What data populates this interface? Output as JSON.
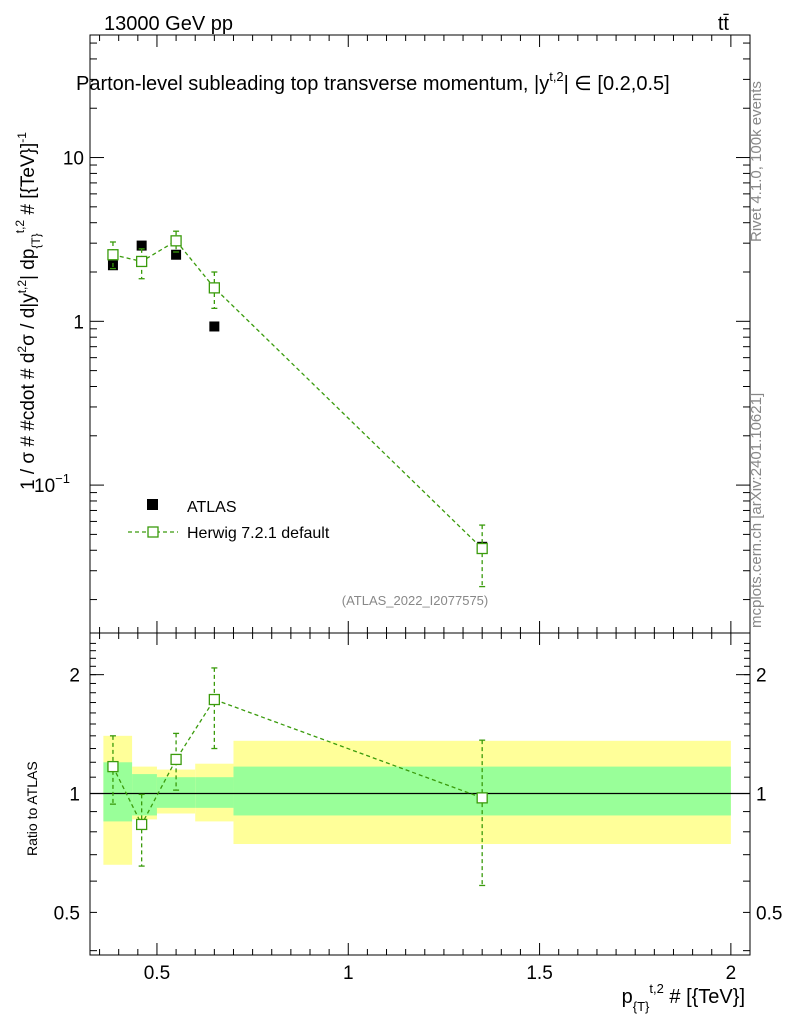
{
  "header": {
    "energy_label": "13000 GeV pp",
    "process_label": "tt̄",
    "title": "Parton-level subleading top transverse momentum, |y",
    "title_sup": "t,2",
    "title_tail": "| ∈ [0.2,0.5]"
  },
  "side_labels": {
    "rivet": "Rivet 4.1.0,  100k events",
    "mcplots": "mcplots.cern.ch [arXiv:2401.10621]"
  },
  "analysis_id": "(ATLAS_2022_I2077575)",
  "colors": {
    "mc": "#3a9b0c",
    "band_inner": "#99ff99",
    "band_outer": "#ffff99",
    "data": "#000000"
  },
  "chart_data": [
    {
      "type": "scatter",
      "name": "main",
      "yscale": "log",
      "ylabel_parts": [
        "1 / σ # #cdot # d",
        "2",
        "σ / d|y",
        "t,2",
        "| dp",
        "{T}",
        "t,2",
        " # [{TeV}]",
        "-1"
      ],
      "xlim": [
        0.325,
        2.05
      ],
      "ylim": [
        0.0125,
        56
      ],
      "y_ticks": [
        {
          "value": 10,
          "label": "10"
        },
        {
          "value": 1,
          "label": "1"
        },
        {
          "value": 0.1,
          "label": "10",
          "sup": "−1"
        }
      ],
      "legend": {
        "position": "lower-left",
        "entries": [
          {
            "label": "ATLAS",
            "marker": "filled-square"
          },
          {
            "label": "Herwig 7.2.1 default",
            "marker": "open-square-dashed"
          }
        ]
      },
      "series": [
        {
          "name": "ATLAS",
          "x": [
            0.385,
            0.46,
            0.55,
            0.65,
            1.35
          ],
          "y": [
            2.2,
            2.9,
            2.55,
            0.93,
            0.042
          ],
          "yerr_low": [
            0.12,
            0.0,
            0.0,
            0.0,
            0.0
          ],
          "yerr_high": [
            0.12,
            0.0,
            0.0,
            0.0,
            0.0
          ]
        },
        {
          "name": "Herwig 7.2.1 default",
          "x": [
            0.385,
            0.46,
            0.55,
            0.65,
            1.35
          ],
          "y": [
            2.55,
            2.32,
            3.1,
            1.6,
            0.041
          ],
          "yerr_low": [
            0.45,
            0.5,
            0.45,
            0.4,
            0.017
          ],
          "yerr_high": [
            0.5,
            0.45,
            0.45,
            0.4,
            0.016
          ]
        }
      ]
    },
    {
      "type": "scatter",
      "name": "ratio",
      "ylabel": "Ratio to ATLAS",
      "xlabel_parts": [
        "p",
        "{T}",
        "t,2",
        " # [{TeV}]"
      ],
      "xlim": [
        0.325,
        2.05
      ],
      "ylim": [
        0.39,
        2.55
      ],
      "y_ticks": [
        {
          "value": 2,
          "label": "2"
        },
        {
          "value": 1,
          "label": "1"
        },
        {
          "value": 0.5,
          "label": "0.5"
        }
      ],
      "x_ticks": [
        {
          "value": 0.5,
          "label": "0.5"
        },
        {
          "value": 1,
          "label": "1"
        },
        {
          "value": 1.5,
          "label": "1.5"
        },
        {
          "value": 2,
          "label": "2"
        }
      ],
      "bands": [
        {
          "x0": 0.36,
          "x1": 0.435,
          "inner": [
            0.85,
            1.2
          ],
          "outer": [
            0.66,
            1.4
          ]
        },
        {
          "x0": 0.435,
          "x1": 0.5,
          "inner": [
            0.88,
            1.12
          ],
          "outer": [
            0.86,
            1.17
          ]
        },
        {
          "x0": 0.5,
          "x1": 0.6,
          "inner": [
            0.92,
            1.1
          ],
          "outer": [
            0.89,
            1.15
          ]
        },
        {
          "x0": 0.6,
          "x1": 0.7,
          "inner": [
            0.92,
            1.1
          ],
          "outer": [
            0.85,
            1.19
          ]
        },
        {
          "x0": 0.7,
          "x1": 2.0,
          "inner": [
            0.88,
            1.17
          ],
          "outer": [
            0.745,
            1.36
          ]
        }
      ],
      "series": [
        {
          "name": "Herwig 7.2.1 default",
          "x": [
            0.385,
            0.46,
            0.55,
            0.65,
            1.35
          ],
          "y": [
            1.17,
            0.835,
            1.22,
            1.73,
            0.975
          ],
          "yerr_low": [
            0.23,
            0.18,
            0.2,
            0.43,
            0.39
          ],
          "yerr_high": [
            0.23,
            0.16,
            0.2,
            0.35,
            0.39
          ]
        }
      ]
    }
  ]
}
